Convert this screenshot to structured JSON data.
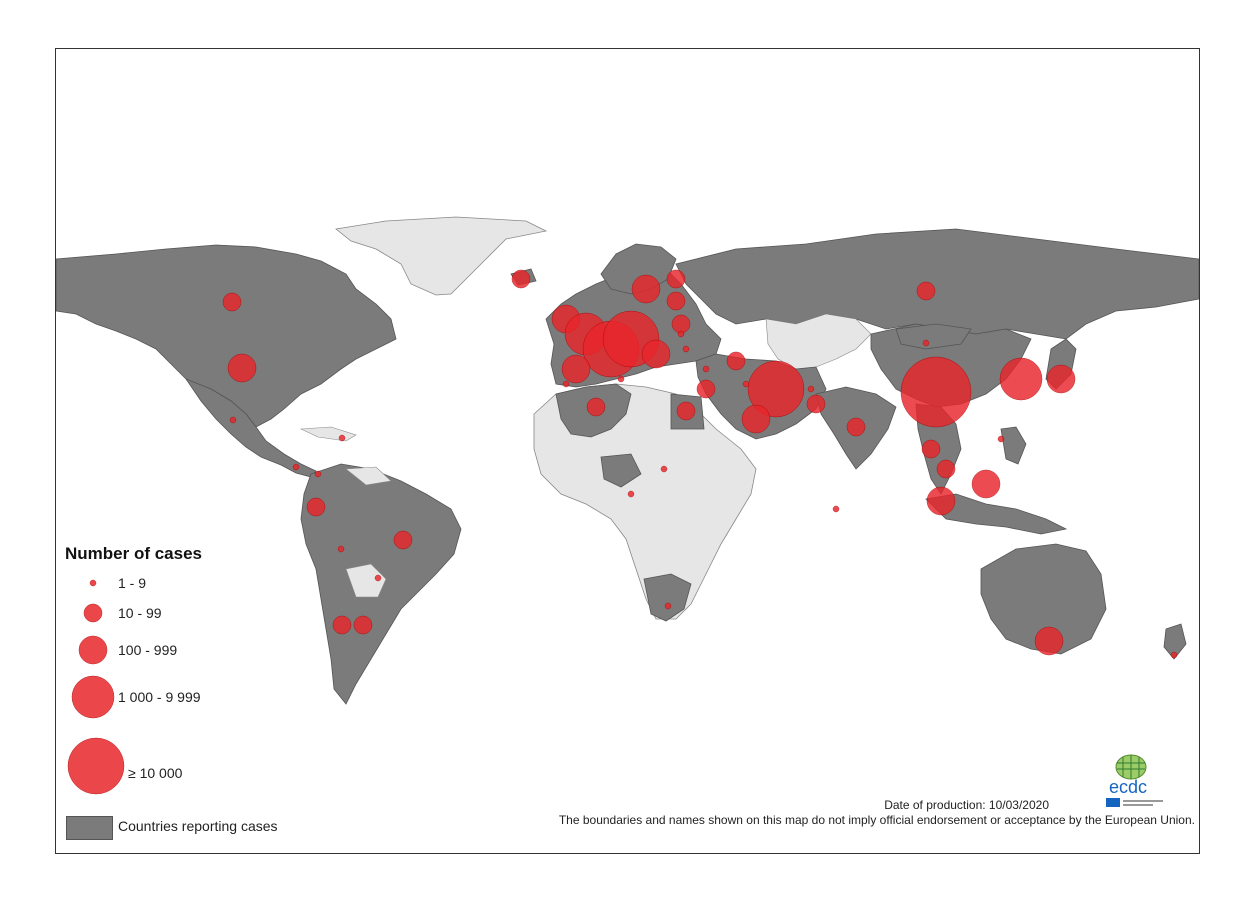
{
  "legend": {
    "title": "Number of cases",
    "classes": [
      {
        "label": "1 - 9"
      },
      {
        "label": "10 - 99"
      },
      {
        "label": "100 - 999"
      },
      {
        "label": "1 000 - 9 999"
      },
      {
        "label": "≥ 10 000"
      }
    ],
    "countries_label": "Countries reporting cases"
  },
  "footer": {
    "production_date": "Date of production: 10/03/2020",
    "disclaimer": "The boundaries and names shown on this map do not imply official endorsement or acceptance by the European Union."
  },
  "logo": {
    "text": "ecdc"
  },
  "colors": {
    "reporting": "#7b7b7b",
    "non_reporting": "#e6e6e6",
    "circle": "#e8262b",
    "border": "#ffffff"
  }
}
